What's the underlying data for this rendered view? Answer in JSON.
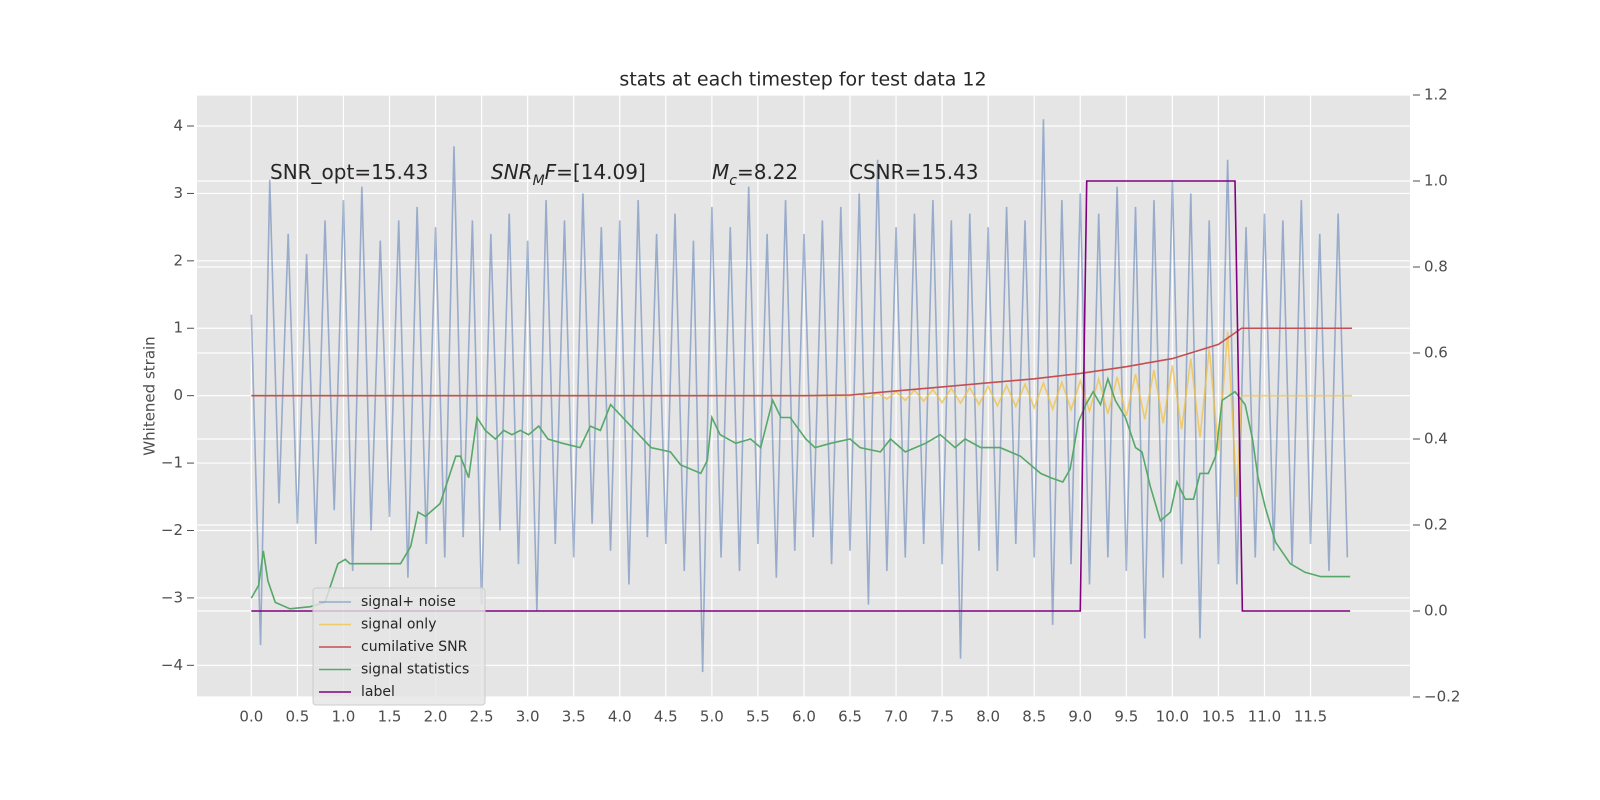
{
  "chart_data": {
    "type": "line",
    "title": "stats at each timestep for test data 12",
    "ylabel": "Whitened strain",
    "grid": true,
    "xlim": [
      -0.59,
      12.58
    ],
    "ylim": [
      -4.47,
      4.46
    ],
    "y2lim": [
      -0.2,
      1.2
    ],
    "xticks": [
      {
        "value": 0,
        "label": "0.0"
      },
      0.5,
      {
        "value": 1,
        "label": "1.0"
      },
      1.5,
      {
        "value": 2,
        "label": "2.0"
      },
      2.5,
      {
        "value": 3,
        "label": "3.0"
      },
      3.5,
      {
        "value": 4,
        "label": "4.0"
      },
      4.5,
      {
        "value": 5,
        "label": "5.0"
      },
      5.5,
      {
        "value": 6,
        "label": "6.0"
      },
      6.5,
      {
        "value": 7,
        "label": "7.0"
      },
      7.5,
      {
        "value": 8,
        "label": "8.0"
      },
      8.5,
      {
        "value": 9,
        "label": "9.0"
      },
      9.5,
      {
        "value": 10,
        "label": "10.0"
      },
      10.5,
      {
        "value": 11,
        "label": "11.0"
      },
      11.5
    ],
    "yticks": [
      {
        "value": -4,
        "label": "−4"
      },
      {
        "value": -3,
        "label": "−3"
      },
      {
        "value": -2,
        "label": "−2"
      },
      {
        "value": -1,
        "label": "−1"
      },
      0,
      1,
      2,
      3,
      4
    ],
    "y2ticks": [
      {
        "value": -0.2,
        "label": "−0.2"
      },
      {
        "value": 0,
        "label": "0.0"
      },
      0.2,
      0.4,
      0.6,
      0.8,
      {
        "value": 1,
        "label": "1.0"
      },
      1.2
    ],
    "annotations": [
      {
        "segments": [
          {
            "text": "SNR_opt=15.43"
          }
        ]
      },
      {
        "segments": [
          {
            "text": "SNR",
            "italic": true
          },
          {
            "text": "M",
            "italic": true,
            "sub": true
          },
          {
            "text": "F",
            "italic": true
          },
          {
            "text": "=[14.09]"
          }
        ]
      },
      {
        "segments": [
          {
            "text": "M",
            "italic": true
          },
          {
            "text": "c",
            "italic": true,
            "sub": true
          },
          {
            "text": "=8.22"
          }
        ]
      },
      {
        "segments": [
          {
            "text": "CSNR=15.43"
          }
        ]
      }
    ],
    "series": [
      {
        "name": "signal+ noise",
        "color": "#4c72b0",
        "axis": "y",
        "x": [
          0,
          0.1,
          0.2,
          0.3,
          0.4,
          0.5,
          0.6,
          0.7,
          0.8,
          0.9,
          1,
          1.1,
          1.2,
          1.3,
          1.4,
          1.5,
          1.6,
          1.7,
          1.8,
          1.9,
          2,
          2.1,
          2.2,
          2.3,
          2.4,
          2.5,
          2.6,
          2.7,
          2.8,
          2.9,
          3,
          3.1,
          3.2,
          3.3,
          3.4,
          3.5,
          3.6,
          3.7,
          3.8,
          3.9,
          4,
          4.1,
          4.2,
          4.3,
          4.4,
          4.5,
          4.6,
          4.7,
          4.8,
          4.9,
          5,
          5.1,
          5.2,
          5.3,
          5.4,
          5.5,
          5.6,
          5.7,
          5.8,
          5.9,
          6,
          6.1,
          6.2,
          6.3,
          6.4,
          6.5,
          6.6,
          6.7,
          6.8,
          6.9,
          7,
          7.1,
          7.2,
          7.3,
          7.4,
          7.5,
          7.6,
          7.7,
          7.8,
          7.9,
          8,
          8.1,
          8.2,
          8.3,
          8.4,
          8.5,
          8.6,
          8.7,
          8.8,
          8.9,
          9,
          9.1,
          9.2,
          9.3,
          9.4,
          9.5,
          9.6,
          9.7,
          9.8,
          9.9,
          10,
          10.1,
          10.2,
          10.3,
          10.4,
          10.5,
          10.6,
          10.7,
          10.8,
          10.9,
          11,
          11.1,
          11.2,
          11.3,
          11.4,
          11.5,
          11.6,
          11.7,
          11.8,
          11.9
        ],
        "values": [
          1.2,
          -3.7,
          3.2,
          -1.6,
          2.4,
          -1.9,
          2.1,
          -2.2,
          2.6,
          -1.7,
          2.9,
          -2.6,
          3.1,
          -2.0,
          2.3,
          -1.8,
          2.6,
          -2.7,
          2.8,
          -2.2,
          2.5,
          -2.4,
          3.7,
          -2.1,
          2.6,
          -3.1,
          2.4,
          -2.0,
          2.7,
          -2.5,
          2.3,
          -3.2,
          2.9,
          -2.2,
          2.6,
          -2.4,
          3.0,
          -1.9,
          2.5,
          -2.3,
          2.6,
          -2.8,
          2.9,
          -2.1,
          2.4,
          -2.2,
          2.7,
          -2.6,
          2.3,
          -4.1,
          2.8,
          -2.4,
          2.5,
          -2.6,
          3.1,
          -2.2,
          2.4,
          -2.7,
          2.9,
          -2.3,
          2.4,
          -2.1,
          2.6,
          -2.5,
          2.8,
          -2.3,
          3.0,
          -3.1,
          3.5,
          -2.6,
          2.5,
          -2.4,
          2.7,
          -2.2,
          2.9,
          -2.5,
          2.6,
          -3.9,
          2.7,
          -2.3,
          2.5,
          -2.6,
          2.8,
          -2.2,
          2.6,
          -2.4,
          4.1,
          -3.4,
          2.9,
          -2.5,
          3.0,
          -2.8,
          2.7,
          -2.4,
          3.1,
          -2.6,
          2.8,
          -3.6,
          2.9,
          -2.7,
          3.2,
          -2.5,
          3.0,
          -3.6,
          2.6,
          -2.5,
          3.5,
          -2.8,
          2.5,
          -2.4,
          2.7,
          -2.3,
          2.6,
          -2.5,
          2.9,
          -2.2,
          2.4,
          -2.6,
          2.7,
          -2.4
        ]
      },
      {
        "name": "signal only",
        "color": "#f0c040",
        "axis": "y",
        "x": [
          0,
          6.5,
          6.6,
          6.7,
          6.8,
          6.9,
          7,
          7.1,
          7.2,
          7.3,
          7.4,
          7.5,
          7.6,
          7.7,
          7.8,
          7.9,
          8,
          8.1,
          8.2,
          8.3,
          8.4,
          8.5,
          8.6,
          8.7,
          8.8,
          8.9,
          9,
          9.1,
          9.2,
          9.3,
          9.4,
          9.5,
          9.6,
          9.7,
          9.8,
          9.9,
          10,
          10.1,
          10.2,
          10.3,
          10.4,
          10.5,
          10.6,
          10.7,
          10.75,
          11.95
        ],
        "values": [
          0,
          0,
          0.02,
          -0.03,
          0.04,
          -0.05,
          0.06,
          -0.07,
          0.08,
          -0.08,
          0.09,
          -0.1,
          0.11,
          -0.11,
          0.12,
          -0.13,
          0.14,
          -0.15,
          0.15,
          -0.16,
          0.17,
          -0.18,
          0.19,
          -0.2,
          0.2,
          -0.21,
          0.22,
          -0.23,
          0.25,
          -0.27,
          0.28,
          -0.3,
          0.32,
          -0.35,
          0.38,
          -0.41,
          0.45,
          -0.5,
          0.55,
          -0.62,
          0.7,
          -0.82,
          0.95,
          -1.5,
          0,
          0
        ]
      },
      {
        "name": "cumilative SNR",
        "color": "#c44e52",
        "axis": "y",
        "x": [
          0,
          6,
          6.5,
          7,
          7.5,
          8,
          8.5,
          9,
          9.5,
          10,
          10.5,
          10.7,
          10.75,
          11.95
        ],
        "values": [
          0,
          0,
          0.01,
          0.07,
          0.13,
          0.19,
          0.25,
          0.33,
          0.43,
          0.55,
          0.76,
          0.95,
          1.0,
          1.0
        ]
      },
      {
        "name": "signal statistics",
        "color": "#55a868",
        "axis": "y2",
        "x": [
          0,
          0.08,
          0.13,
          0.18,
          0.26,
          0.42,
          0.64,
          0.8,
          0.94,
          1.02,
          1.07,
          1.62,
          1.73,
          1.81,
          1.89,
          2.05,
          2.22,
          2.27,
          2.36,
          2.45,
          2.54,
          2.65,
          2.74,
          2.83,
          2.92,
          3.01,
          3.12,
          3.22,
          3.38,
          3.57,
          3.68,
          3.79,
          3.9,
          4.12,
          4.34,
          4.55,
          4.66,
          4.88,
          4.95,
          5.0,
          5.09,
          5.26,
          5.42,
          5.53,
          5.66,
          5.75,
          5.85,
          6.02,
          6.12,
          6.29,
          6.5,
          6.61,
          6.83,
          6.94,
          7.1,
          7.32,
          7.48,
          7.64,
          7.75,
          7.92,
          8.13,
          8.35,
          8.57,
          8.68,
          8.81,
          8.89,
          8.98,
          9.06,
          9.14,
          9.22,
          9.3,
          9.38,
          9.49,
          9.6,
          9.67,
          9.76,
          9.87,
          9.98,
          10.05,
          10.14,
          10.23,
          10.3,
          10.39,
          10.47,
          10.54,
          10.61,
          10.68,
          10.79,
          10.87,
          10.93,
          11.01,
          11.12,
          11.28,
          11.44,
          11.61,
          11.93
        ],
        "values": [
          0.03,
          0.06,
          0.14,
          0.07,
          0.02,
          0.005,
          0.01,
          0.02,
          0.11,
          0.12,
          0.11,
          0.11,
          0.15,
          0.23,
          0.22,
          0.25,
          0.36,
          0.36,
          0.31,
          0.45,
          0.42,
          0.4,
          0.42,
          0.41,
          0.42,
          0.41,
          0.43,
          0.4,
          0.39,
          0.38,
          0.43,
          0.42,
          0.48,
          0.43,
          0.38,
          0.37,
          0.34,
          0.32,
          0.35,
          0.45,
          0.41,
          0.39,
          0.4,
          0.38,
          0.49,
          0.45,
          0.45,
          0.4,
          0.38,
          0.39,
          0.4,
          0.38,
          0.37,
          0.4,
          0.37,
          0.39,
          0.41,
          0.38,
          0.4,
          0.38,
          0.38,
          0.36,
          0.32,
          0.31,
          0.3,
          0.33,
          0.44,
          0.48,
          0.51,
          0.48,
          0.54,
          0.49,
          0.45,
          0.38,
          0.37,
          0.29,
          0.21,
          0.23,
          0.3,
          0.26,
          0.26,
          0.32,
          0.32,
          0.36,
          0.49,
          0.5,
          0.51,
          0.48,
          0.4,
          0.31,
          0.24,
          0.16,
          0.11,
          0.09,
          0.08,
          0.08
        ]
      },
      {
        "name": "label",
        "color": "#800080",
        "axis": "y2",
        "x": [
          0,
          9.0,
          9.07,
          10.68,
          10.76,
          11.93
        ],
        "values": [
          0,
          0,
          1,
          1,
          0,
          0
        ]
      }
    ]
  }
}
